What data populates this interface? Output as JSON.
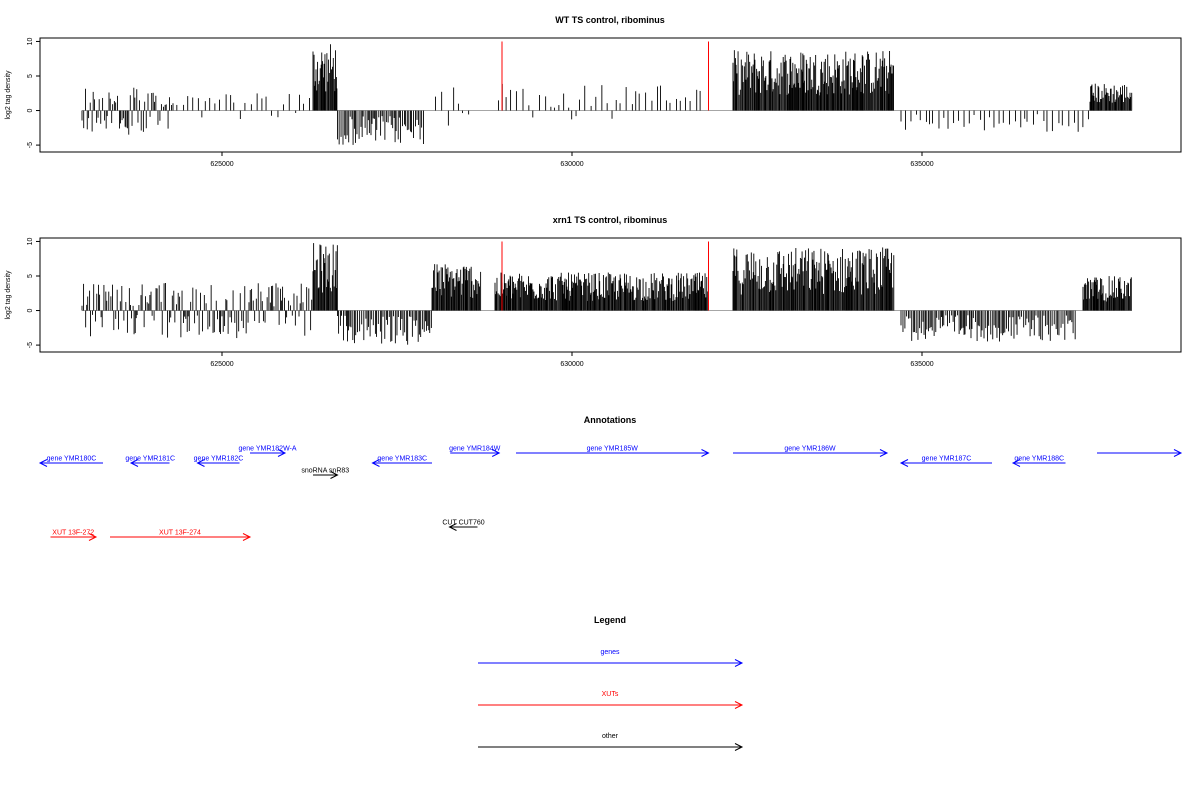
{
  "chart_data": [
    {
      "type": "bar",
      "title": "WT TS control, ribominus",
      "ylabel": "log2 tag density",
      "xlabel": "",
      "xlim": [
        622400,
        638700
      ],
      "ylim": [
        -6,
        10.5
      ],
      "yticks": [
        -5,
        0,
        5,
        10
      ],
      "xticks": [
        625000,
        630000,
        635000
      ],
      "grid": false,
      "red_markers": [
        629000,
        631950
      ],
      "signal_regions": [
        {
          "start": 623000,
          "end": 624300,
          "kind": "mixed",
          "amp": 3.5
        },
        {
          "start": 624300,
          "end": 626300,
          "kind": "sparse_pos",
          "amp": 2.5
        },
        {
          "start": 626300,
          "end": 626650,
          "kind": "pos_dense",
          "amp": 9.8
        },
        {
          "start": 626650,
          "end": 627900,
          "kind": "neg",
          "amp": 5.0
        },
        {
          "start": 628050,
          "end": 628600,
          "kind": "sparse_pos",
          "amp": 4.5
        },
        {
          "start": 628950,
          "end": 631900,
          "kind": "sparse_pos",
          "amp": 4.0
        },
        {
          "start": 632300,
          "end": 634600,
          "kind": "pos_dense",
          "amp": 8.8
        },
        {
          "start": 634700,
          "end": 636500,
          "kind": "sparse_neg",
          "amp": 3.0
        },
        {
          "start": 636500,
          "end": 637400,
          "kind": "sparse_neg",
          "amp": 3.5
        },
        {
          "start": 637400,
          "end": 638000,
          "kind": "pos_dense",
          "amp": 4.0
        }
      ]
    },
    {
      "type": "bar",
      "title": "xrn1 TS control, ribominus",
      "ylabel": "log2 tag density",
      "xlabel": "",
      "xlim": [
        622400,
        638700
      ],
      "ylim": [
        -6,
        10.5
      ],
      "yticks": [
        -5,
        0,
        5,
        10
      ],
      "xticks": [
        625000,
        630000,
        635000
      ],
      "grid": false,
      "red_markers": [
        629000,
        631950
      ],
      "signal_regions": [
        {
          "start": 623000,
          "end": 626300,
          "kind": "mixed",
          "amp": 4.0
        },
        {
          "start": 626300,
          "end": 626650,
          "kind": "pos_dense",
          "amp": 9.8
        },
        {
          "start": 626650,
          "end": 628000,
          "kind": "neg",
          "amp": 5.0
        },
        {
          "start": 628000,
          "end": 628700,
          "kind": "pos_dense",
          "amp": 7.0
        },
        {
          "start": 628900,
          "end": 631950,
          "kind": "pos_dense",
          "amp": 5.5
        },
        {
          "start": 632300,
          "end": 634600,
          "kind": "pos_dense",
          "amp": 9.2
        },
        {
          "start": 634700,
          "end": 637200,
          "kind": "neg",
          "amp": 4.5
        },
        {
          "start": 637300,
          "end": 638000,
          "kind": "pos_dense",
          "amp": 5.0
        }
      ]
    },
    {
      "type": "other",
      "title": "Annotations",
      "genes": [
        {
          "label": "gene YMR180C",
          "start": 622400,
          "end": 623300,
          "strand": "-",
          "row": 1
        },
        {
          "label": "gene YMR181C",
          "start": 623700,
          "end": 624250,
          "strand": "-",
          "row": 1
        },
        {
          "label": "gene YMR182C",
          "start": 624650,
          "end": 625250,
          "strand": "-",
          "row": 1
        },
        {
          "label": "gene YMR182W-A",
          "start": 625400,
          "end": 625900,
          "strand": "+",
          "row": 0
        },
        {
          "label": "gene YMR183C",
          "start": 627150,
          "end": 628000,
          "strand": "-",
          "row": 1
        },
        {
          "label": "gene YMR184W",
          "start": 628260,
          "end": 628960,
          "strand": "+",
          "row": 0
        },
        {
          "label": "gene YMR185W",
          "start": 629200,
          "end": 631950,
          "strand": "+",
          "row": 0
        },
        {
          "label": "gene YMR186W",
          "start": 632300,
          "end": 634500,
          "strand": "+",
          "row": 0
        },
        {
          "label": "gene YMR187C",
          "start": 634700,
          "end": 636000,
          "strand": "-",
          "row": 1
        },
        {
          "label": "gene YMR188C",
          "start": 636300,
          "end": 637050,
          "strand": "-",
          "row": 1
        },
        {
          "label": "",
          "start": 637500,
          "end": 638700,
          "strand": "+",
          "row": 0
        }
      ],
      "others": [
        {
          "label": "snoRNA snR83",
          "start": 626300,
          "end": 626650,
          "strand": "+",
          "row": 2
        },
        {
          "label": "CUT CUT760",
          "start": 628250,
          "end": 628650,
          "strand": "-",
          "row": 3
        }
      ],
      "xuts": [
        {
          "label": "XUT 13F-272",
          "start": 622550,
          "end": 623200,
          "strand": "+",
          "row": 4
        },
        {
          "label": "XUT 13F-274",
          "start": 623400,
          "end": 625400,
          "strand": "+",
          "row": 4
        }
      ]
    },
    {
      "type": "legend",
      "title": "Legend",
      "entries": [
        {
          "label": "genes",
          "color": "#0000ff"
        },
        {
          "label": "XUTs",
          "color": "#ff0000"
        },
        {
          "label": "other",
          "color": "#000000"
        }
      ]
    }
  ],
  "colors": {
    "bars": "#000000",
    "markers": "#ff0000",
    "genes": "#0000ff",
    "xuts": "#ff0000",
    "other": "#000000",
    "zero_line": "#999999"
  }
}
